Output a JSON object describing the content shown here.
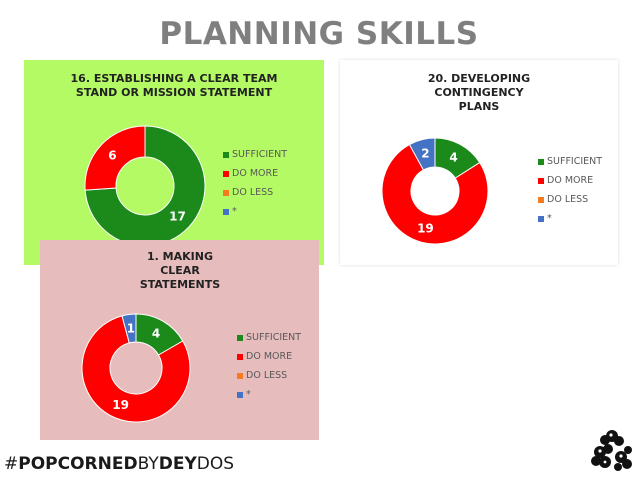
{
  "page": {
    "title": "PLANNING SKILLS"
  },
  "panels": [
    {
      "title_lines": [
        "16. ESTABLISHING A CLEAR TEAM",
        "STAND OR MISSION STATEMENT"
      ],
      "legend": [
        "SUFFICIENT",
        "DO MORE",
        "DO LESS",
        "*"
      ]
    },
    {
      "title_lines": [
        "20. DEVELOPING",
        "CONTINGENCY",
        "PLANS"
      ],
      "legend": [
        "SUFFICIENT",
        "DO MORE",
        "DO LESS",
        "*"
      ]
    },
    {
      "title_lines": [
        "1. MAKING",
        "CLEAR",
        "STATEMENTS"
      ],
      "legend": [
        "SUFFICIENT",
        "DO MORE",
        "DO LESS",
        "*"
      ]
    }
  ],
  "chart_data": [
    {
      "type": "pie",
      "variant": "donut",
      "title": "16. ESTABLISHING A CLEAR TEAM STAND OR MISSION STATEMENT",
      "categories": [
        "SUFFICIENT",
        "DO MORE",
        "DO LESS",
        "*"
      ],
      "values": [
        17,
        6,
        0,
        0
      ],
      "colors": [
        "#1b8a1b",
        "#ff0000",
        "#f47b20",
        "#4472c4"
      ],
      "data_labels": [
        "17",
        "6",
        "",
        ""
      ],
      "legend_position": "right"
    },
    {
      "type": "pie",
      "variant": "donut",
      "title": "20. DEVELOPING CONTINGENCY PLANS",
      "categories": [
        "SUFFICIENT",
        "DO MORE",
        "DO LESS",
        "*"
      ],
      "values": [
        4,
        19,
        0,
        2
      ],
      "colors": [
        "#1b8a1b",
        "#ff0000",
        "#f47b20",
        "#4472c4"
      ],
      "data_labels": [
        "4",
        "19",
        "",
        "2"
      ],
      "legend_position": "right"
    },
    {
      "type": "pie",
      "variant": "donut",
      "title": "1. MAKING CLEAR STATEMENTS",
      "categories": [
        "SUFFICIENT",
        "DO MORE",
        "DO LESS",
        "*"
      ],
      "values": [
        4,
        19,
        0,
        1
      ],
      "colors": [
        "#1b8a1b",
        "#ff0000",
        "#f47b20",
        "#4472c4"
      ],
      "data_labels": [
        "4",
        "19",
        "",
        "1"
      ],
      "legend_position": "right"
    }
  ],
  "footer": {
    "hash": "#",
    "popcorned": "POPCORNED",
    "by": "BY",
    "dey": "DEY",
    "dos": "DOS"
  },
  "icons": {
    "logo": "popcorn-logo-icon"
  }
}
